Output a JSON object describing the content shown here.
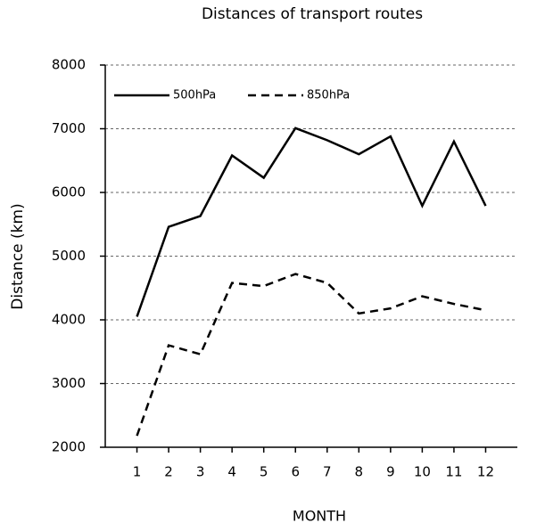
{
  "chart_data": {
    "type": "line",
    "title": "Distances of transport routes",
    "xlabel": "MONTH",
    "ylabel": "Distance (km)",
    "x": [
      1,
      2,
      3,
      4,
      5,
      6,
      7,
      8,
      9,
      10,
      11,
      12
    ],
    "series": [
      {
        "name": "500hPa",
        "color": "#000000",
        "style": "solid",
        "values": [
          4050,
          5460,
          5630,
          6580,
          6230,
          7010,
          6820,
          6600,
          6880,
          5790,
          6800,
          5790
        ]
      },
      {
        "name": "850hPa",
        "color": "#000000",
        "style": "dashed",
        "values": [
          2180,
          3600,
          3460,
          4580,
          4530,
          4720,
          4580,
          4100,
          4180,
          4370,
          4250,
          4150
        ]
      }
    ],
    "xlim": [
      0,
      13
    ],
    "xticks": [
      1,
      2,
      3,
      4,
      5,
      6,
      7,
      8,
      9,
      10,
      11,
      12
    ],
    "ylim": [
      2000,
      8000
    ],
    "yticks": [
      2000,
      3000,
      4000,
      5000,
      6000,
      7000,
      8000
    ],
    "grid": true,
    "legend": "top-left"
  }
}
